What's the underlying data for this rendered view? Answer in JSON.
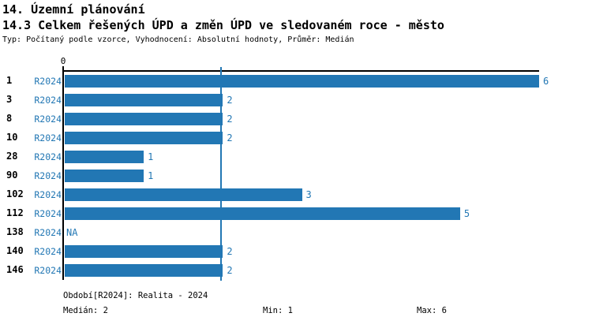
{
  "header": {
    "title": "14. Územní plánování",
    "subtitle": "14.3 Celkem řešených ÚPD a změn ÚPD ve sledovaném roce - město",
    "meta": "Typ: Počítaný podle vzorce, Vyhodnocení: Absolutní hodnoty, Průměr: Medián"
  },
  "chart_data": {
    "type": "bar",
    "orientation": "horizontal",
    "title": "14.3 Celkem řešených ÚPD a změn ÚPD ve sledovaném roce - město",
    "series_label": "R2024",
    "categories": [
      "1",
      "3",
      "8",
      "10",
      "28",
      "90",
      "102",
      "112",
      "138",
      "140",
      "146"
    ],
    "values": [
      6,
      2,
      2,
      2,
      1,
      1,
      3,
      5,
      null,
      2,
      2
    ],
    "na_label": "NA",
    "xlim": [
      0,
      6
    ],
    "x_tick_labels": [
      "0"
    ],
    "median_line_value": 2,
    "grid": false,
    "legend_position": "none",
    "bar_color": "#2277b4",
    "accent_text_color": "#2277b4",
    "axis_color": "#000000"
  },
  "footer": {
    "period": "Období[R2024]: Realita - 2024",
    "median": "Medián: 2",
    "min": "Min: 1",
    "max": "Max: 6"
  }
}
